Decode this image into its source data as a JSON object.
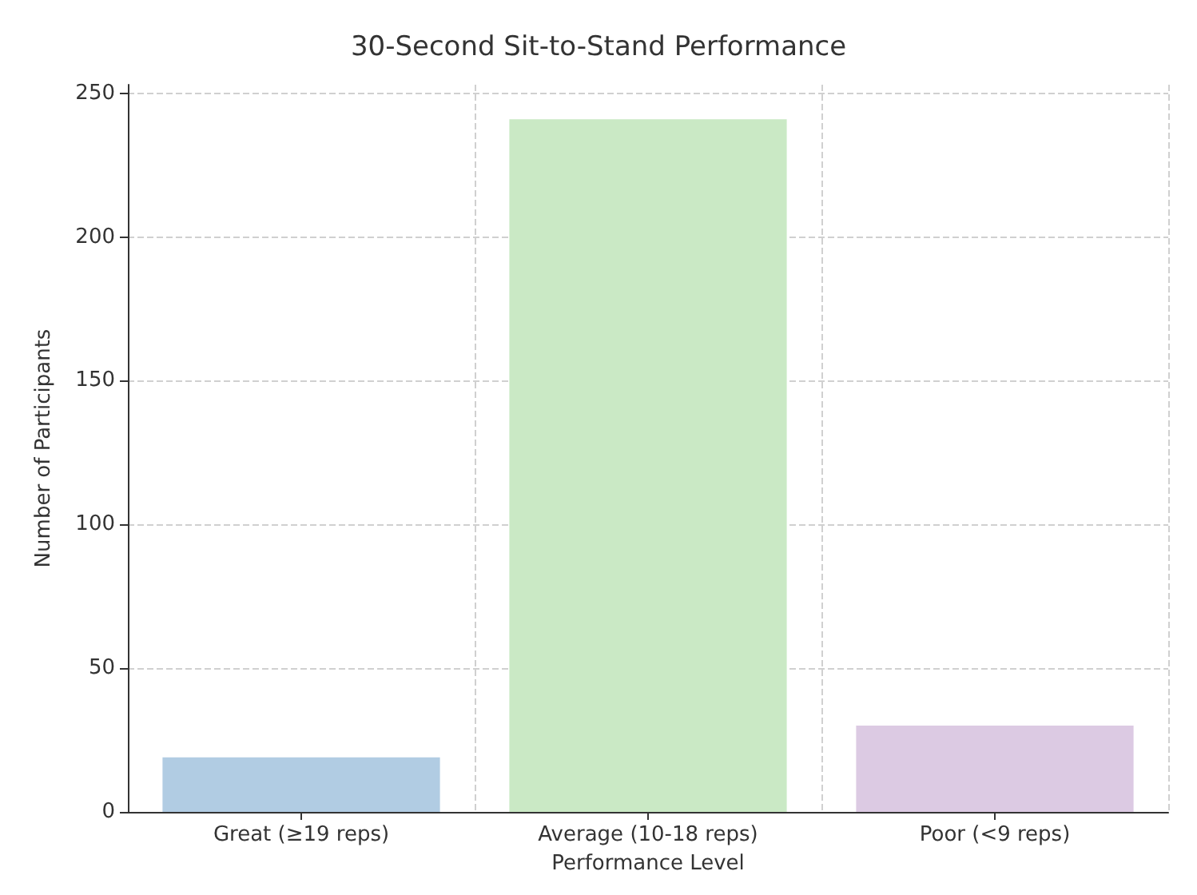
{
  "chart_data": {
    "type": "bar",
    "title": "30-Second Sit-to-Stand Performance",
    "xlabel": "Performance Level",
    "ylabel": "Number of Participants",
    "categories": [
      "Great (≥19 reps)",
      "Average (10-18 reps)",
      "Poor (<9 reps)"
    ],
    "values": [
      19,
      241,
      30
    ],
    "colors": [
      "#b1cce3",
      "#cae9c5",
      "#dccae3"
    ],
    "ylim": [
      0,
      253
    ],
    "yticks": [
      0,
      50,
      100,
      150,
      200,
      250
    ],
    "grid": true
  }
}
